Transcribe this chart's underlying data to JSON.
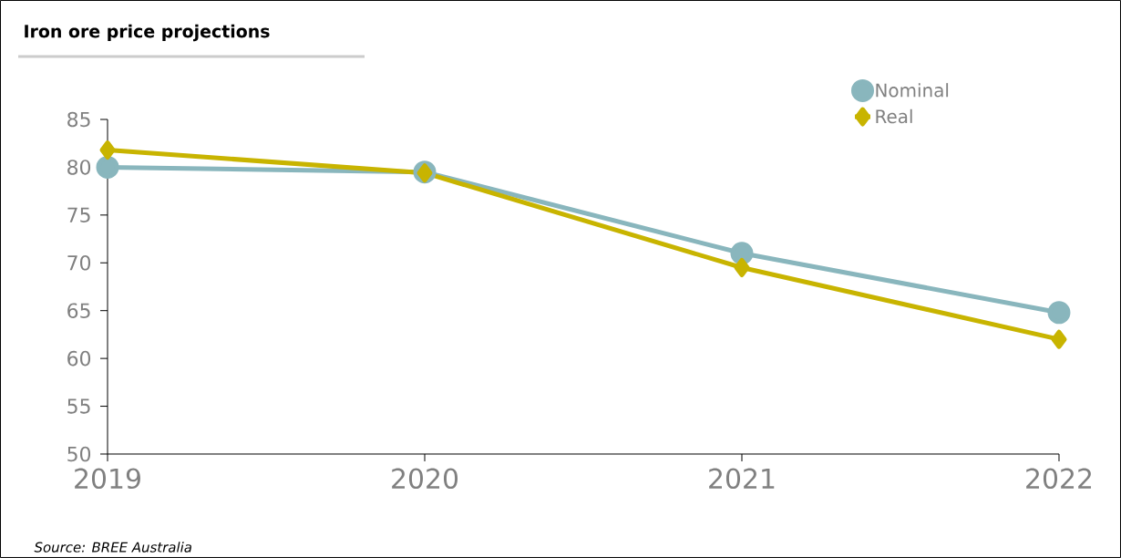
{
  "chart_data": {
    "type": "line",
    "title": "Iron ore price projections",
    "annotations": [
      "Source: BREE Australia"
    ],
    "x": [
      2019,
      2020,
      2021,
      2022
    ],
    "xlim": [
      2019,
      2022
    ],
    "xticks": [
      2019,
      2020,
      2021,
      2022
    ],
    "ylim": [
      50,
      85
    ],
    "yticks": [
      50,
      55,
      60,
      65,
      70,
      75,
      80,
      85
    ],
    "grid": false,
    "legend": "top right",
    "series": [
      {
        "name": "Nominal",
        "color": "#89b6bd",
        "marker": "circle",
        "values": [
          80,
          79.5,
          71,
          64.8
        ]
      },
      {
        "name": "Real",
        "color": "#c8b400",
        "marker": "diamond",
        "values": [
          81.8,
          79.4,
          69.5,
          62
        ]
      }
    ]
  }
}
